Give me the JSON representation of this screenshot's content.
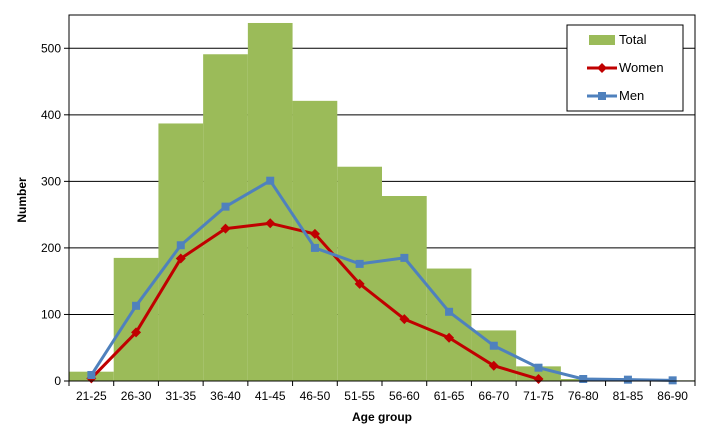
{
  "chart_data": {
    "type": "bar+line",
    "title": "",
    "xlabel": "Age group",
    "ylabel": "Number",
    "ylim": [
      0,
      550
    ],
    "yticks": [
      0,
      100,
      200,
      300,
      400,
      500
    ],
    "grid": "horizontal",
    "legend": "top-right",
    "categories": [
      "21-25",
      "26-30",
      "31-35",
      "36-40",
      "41-45",
      "46-50",
      "51-55",
      "56-60",
      "61-65",
      "66-70",
      "71-75",
      "76-80",
      "81-85",
      "86-90"
    ],
    "series": [
      {
        "name": "Total",
        "type": "bar",
        "color": "#9bbb59",
        "values": [
          14,
          185,
          387,
          491,
          538,
          421,
          322,
          278,
          169,
          76,
          22,
          3,
          2,
          1
        ]
      },
      {
        "name": "Women",
        "type": "line",
        "marker": "diamond",
        "color": "#c00000",
        "values": [
          4,
          73,
          184,
          229,
          237,
          221,
          146,
          93,
          65,
          23,
          3,
          null,
          null,
          null
        ]
      },
      {
        "name": "Men",
        "type": "line",
        "marker": "square",
        "color": "#4f81bd",
        "values": [
          9,
          113,
          204,
          262,
          301,
          200,
          176,
          185,
          104,
          53,
          20,
          3,
          2,
          1
        ]
      }
    ]
  }
}
